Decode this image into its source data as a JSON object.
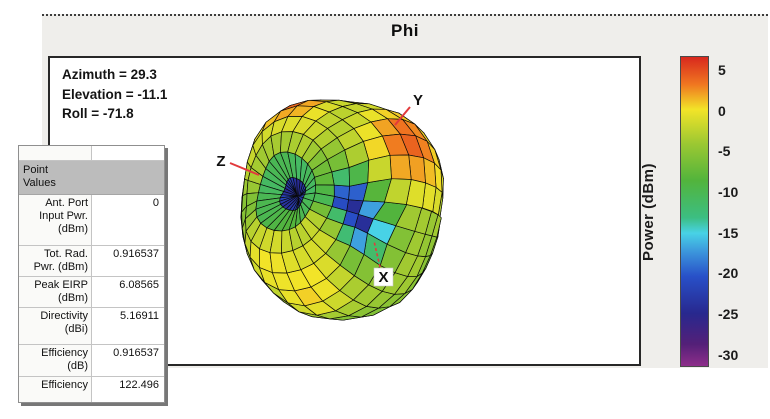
{
  "title": "Phi",
  "annotation": {
    "azimuth_line": "Azimuth = 29.3",
    "elevation_line": "Elevation = -11.1",
    "roll_line": "Roll = -71.8"
  },
  "plot": {
    "axis_x": "X",
    "axis_y": "Y",
    "axis_z": "Z"
  },
  "colorbar": {
    "label": "Power  (dBm)",
    "ticks": [
      "5",
      "0",
      "-5",
      "-10",
      "-15",
      "-20",
      "-25",
      "-30"
    ]
  },
  "point_table": {
    "header": "Point\nValues",
    "rows": [
      {
        "label": "Ant. Port\nInput Pwr.\n(dBm)",
        "value": "0"
      },
      {
        "label": "Tot. Rad.\nPwr. (dBm)",
        "value": "0.916537"
      },
      {
        "label": "Peak EIRP\n(dBm)",
        "value": "6.08565"
      },
      {
        "label": "Directivity\n(dBi)",
        "value": "5.16911"
      },
      {
        "label": "Efficiency\n(dB)",
        "value": "0.916537"
      },
      {
        "label": "Efficiency",
        "value": "122.496"
      }
    ]
  },
  "chart_data": {
    "type": "surface",
    "title": "Phi",
    "subtitle": "3D antenna radiation pattern (meshed spherical surface), mostly green/yellow around -8 to 0 dBm, orange maxima near +3 to +5 dBm toward the upper right by the Y axis, and cyan/blue nulls near -15 to -25 dBm at three dimples",
    "orientation": {
      "azimuth": 29.3,
      "elevation": -11.1,
      "roll": -71.8
    },
    "axes": [
      "X",
      "Y",
      "Z"
    ],
    "colorbar": {
      "label": "Power (dBm)",
      "ticks": [
        5,
        0,
        -5,
        -10,
        -15,
        -20,
        -25,
        -30
      ],
      "min": -30,
      "max": 5
    },
    "colormap": [
      {
        "t": 0.0,
        "c": "#d8281e"
      },
      {
        "t": 0.09,
        "c": "#f07820"
      },
      {
        "t": 0.17,
        "c": "#f2e428"
      },
      {
        "t": 0.28,
        "c": "#9cc832"
      },
      {
        "t": 0.4,
        "c": "#52b43c"
      },
      {
        "t": 0.52,
        "c": "#3cbe82"
      },
      {
        "t": 0.57,
        "c": "#48d2e6"
      },
      {
        "t": 0.63,
        "c": "#3c96dc"
      },
      {
        "t": 0.71,
        "c": "#2850c8"
      },
      {
        "t": 0.83,
        "c": "#28288e"
      },
      {
        "t": 0.93,
        "c": "#542078"
      },
      {
        "t": 1.0,
        "c": "#8e2e8a"
      }
    ],
    "point_values": [
      {
        "label": "Ant. Port Input Pwr. (dBm)",
        "value": 0
      },
      {
        "label": "Tot. Rad. Pwr. (dBm)",
        "value": 0.916537
      },
      {
        "label": "Peak EIRP (dBm)",
        "value": 6.08565
      },
      {
        "label": "Directivity (dBi)",
        "value": 5.16911
      },
      {
        "label": "Efficiency (dB)",
        "value": 0.916537
      },
      {
        "label": "Efficiency",
        "value": 122.496
      }
    ]
  }
}
